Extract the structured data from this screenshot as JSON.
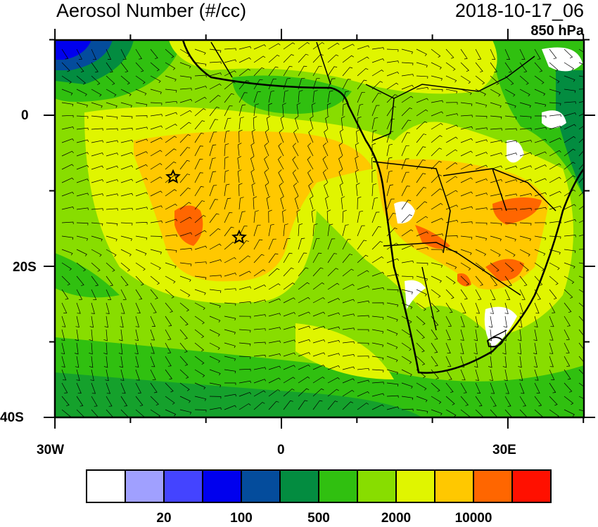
{
  "title": "Aerosol Number (#/cc)",
  "datetime": "2018-10-17_06",
  "level": "850 hPa",
  "axes": {
    "x_ticks": [
      "30W",
      "0",
      "30E"
    ],
    "y_ticks": [
      "0",
      "20S",
      "40S"
    ]
  },
  "colorbar": {
    "colors": [
      "#ffffff",
      "#a0a0ff",
      "#4444ff",
      "#0000ee",
      "#044c9c",
      "#038c40",
      "#30c010",
      "#88dd00",
      "#e0f500",
      "#ffc800",
      "#ff6600",
      "#ff1000"
    ],
    "labels": [
      "20",
      "100",
      "500",
      "2000",
      "10000"
    ]
  },
  "markers": {
    "icon": "star-icon",
    "count": 2
  }
}
